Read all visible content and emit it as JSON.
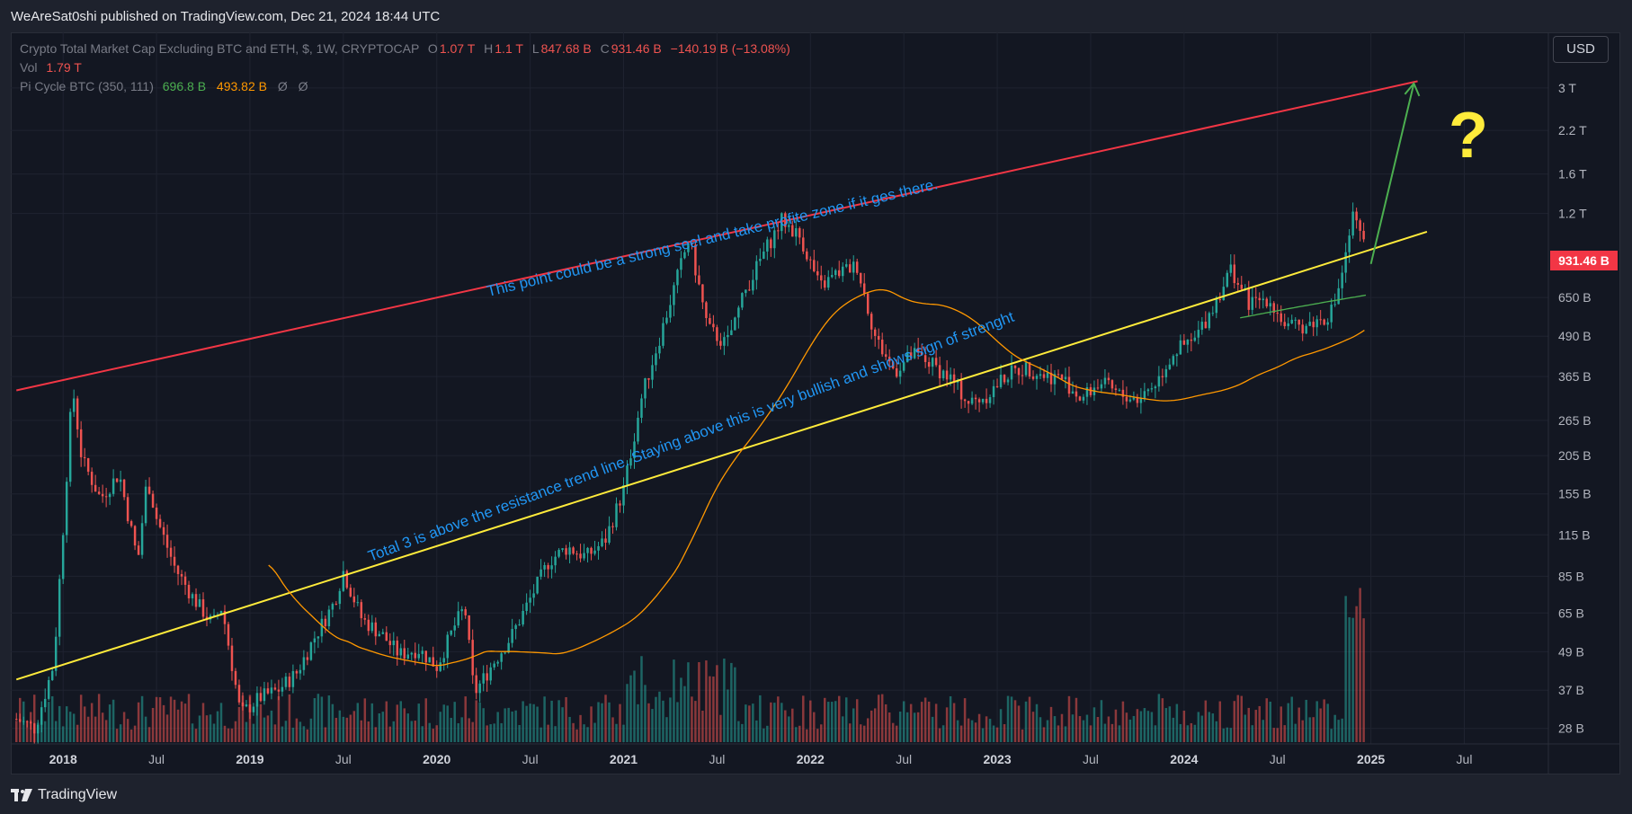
{
  "publisher": "WeAreSat0shi published on TradingView.com, Dec 21, 2024 18:44 UTC",
  "legend": {
    "symbol": "Crypto Total Market Cap Excluding BTC and ETH, $, 1W, CRYPTOCAP",
    "o_label": "O",
    "o_value": "1.07 T",
    "h_label": "H",
    "h_value": "1.1 T",
    "l_label": "L",
    "l_value": "847.68 B",
    "c_label": "C",
    "c_value": "931.46 B",
    "change": "−140.19 B (−13.08%)",
    "vol_label": "Vol",
    "vol_value": "1.79 T",
    "pi_label": "Pi Cycle BTC (350, 111)",
    "pi_value1": "696.8 B",
    "pi_value2": "493.82 B",
    "pi_na1": "Ø",
    "pi_na2": "Ø"
  },
  "currency_button": "USD",
  "last_price_label": "931.46 B",
  "brand": "TradingView",
  "chart_data": {
    "type": "candlestick",
    "timeframe": "1W",
    "y_scale": "log",
    "ylim_billions": [
      25,
      4500
    ],
    "xlim": [
      "2017-09",
      "2025-10"
    ],
    "y_ticks": [
      {
        "label": "3 T",
        "value": 3000
      },
      {
        "label": "2.2 T",
        "value": 2200
      },
      {
        "label": "1.6 T",
        "value": 1600
      },
      {
        "label": "1.2 T",
        "value": 1200
      },
      {
        "label": "650 B",
        "value": 650
      },
      {
        "label": "490 B",
        "value": 490
      },
      {
        "label": "365 B",
        "value": 365
      },
      {
        "label": "265 B",
        "value": 265
      },
      {
        "label": "205 B",
        "value": 205
      },
      {
        "label": "155 B",
        "value": 155
      },
      {
        "label": "115 B",
        "value": 115
      },
      {
        "label": "85 B",
        "value": 85
      },
      {
        "label": "65 B",
        "value": 65
      },
      {
        "label": "49 B",
        "value": 49
      },
      {
        "label": "37 B",
        "value": 37
      },
      {
        "label": "28 B",
        "value": 28
      }
    ],
    "x_ticks": [
      {
        "label": "2018",
        "date": 2018.0,
        "major": true
      },
      {
        "label": "Jul",
        "date": 2018.5,
        "major": false
      },
      {
        "label": "2019",
        "date": 2019.0,
        "major": true
      },
      {
        "label": "Jul",
        "date": 2019.5,
        "major": false
      },
      {
        "label": "2020",
        "date": 2020.0,
        "major": true
      },
      {
        "label": "Jul",
        "date": 2020.5,
        "major": false
      },
      {
        "label": "2021",
        "date": 2021.0,
        "major": true
      },
      {
        "label": "Jul",
        "date": 2021.5,
        "major": false
      },
      {
        "label": "2022",
        "date": 2022.0,
        "major": true
      },
      {
        "label": "Jul",
        "date": 2022.5,
        "major": false
      },
      {
        "label": "2023",
        "date": 2023.0,
        "major": true
      },
      {
        "label": "Jul",
        "date": 2023.5,
        "major": false
      },
      {
        "label": "2024",
        "date": 2024.0,
        "major": true
      },
      {
        "label": "Jul",
        "date": 2024.5,
        "major": false
      },
      {
        "label": "2025",
        "date": 2025.0,
        "major": true
      },
      {
        "label": "Jul",
        "date": 2025.5,
        "major": false
      }
    ],
    "price_path": [
      [
        2017.75,
        30
      ],
      [
        2017.85,
        28
      ],
      [
        2017.95,
        45
      ],
      [
        2018.0,
        120
      ],
      [
        2018.05,
        340
      ],
      [
        2018.1,
        200
      ],
      [
        2018.2,
        150
      ],
      [
        2018.3,
        180
      ],
      [
        2018.4,
        95
      ],
      [
        2018.45,
        175
      ],
      [
        2018.5,
        130
      ],
      [
        2018.6,
        90
      ],
      [
        2018.7,
        72
      ],
      [
        2018.8,
        60
      ],
      [
        2018.85,
        68
      ],
      [
        2018.95,
        31
      ],
      [
        2019.05,
        35
      ],
      [
        2019.15,
        37
      ],
      [
        2019.25,
        42
      ],
      [
        2019.35,
        55
      ],
      [
        2019.45,
        70
      ],
      [
        2019.5,
        88
      ],
      [
        2019.6,
        62
      ],
      [
        2019.7,
        56
      ],
      [
        2019.8,
        48
      ],
      [
        2019.9,
        50
      ],
      [
        2020.0,
        44
      ],
      [
        2020.1,
        60
      ],
      [
        2020.15,
        68
      ],
      [
        2020.2,
        36
      ],
      [
        2020.3,
        45
      ],
      [
        2020.4,
        55
      ],
      [
        2020.5,
        72
      ],
      [
        2020.6,
        95
      ],
      [
        2020.7,
        105
      ],
      [
        2020.8,
        98
      ],
      [
        2020.9,
        110
      ],
      [
        2021.0,
        160
      ],
      [
        2021.1,
        320
      ],
      [
        2021.2,
        500
      ],
      [
        2021.3,
        800
      ],
      [
        2021.35,
        1000
      ],
      [
        2021.45,
        520
      ],
      [
        2021.55,
        460
      ],
      [
        2021.65,
        680
      ],
      [
        2021.75,
        900
      ],
      [
        2021.85,
        1150
      ],
      [
        2021.95,
        1000
      ],
      [
        2022.05,
        700
      ],
      [
        2022.15,
        780
      ],
      [
        2022.25,
        820
      ],
      [
        2022.35,
        480
      ],
      [
        2022.45,
        380
      ],
      [
        2022.55,
        430
      ],
      [
        2022.65,
        400
      ],
      [
        2022.75,
        360
      ],
      [
        2022.85,
        300
      ],
      [
        2022.95,
        320
      ],
      [
        2023.05,
        370
      ],
      [
        2023.15,
        390
      ],
      [
        2023.25,
        370
      ],
      [
        2023.35,
        360
      ],
      [
        2023.45,
        310
      ],
      [
        2023.55,
        350
      ],
      [
        2023.65,
        320
      ],
      [
        2023.75,
        310
      ],
      [
        2023.85,
        350
      ],
      [
        2023.95,
        440
      ],
      [
        2024.05,
        470
      ],
      [
        2024.15,
        600
      ],
      [
        2024.25,
        800
      ],
      [
        2024.35,
        620
      ],
      [
        2024.45,
        650
      ],
      [
        2024.55,
        520
      ],
      [
        2024.65,
        530
      ],
      [
        2024.75,
        560
      ],
      [
        2024.8,
        600
      ],
      [
        2024.87,
        900
      ],
      [
        2024.9,
        1180
      ],
      [
        2024.97,
        931
      ]
    ],
    "volume_scale_max": 1.0,
    "annotations": [
      {
        "text": "This point could be a strong seel and take profite zone if it ges there.",
        "type": "text"
      },
      {
        "text": "Total 3 is above the resistance trend line. Staying above this is very bullish and shows sign of strenght",
        "type": "text"
      },
      {
        "text": "?",
        "type": "marker"
      }
    ],
    "trend_lines": [
      {
        "name": "resistance",
        "color": "#f23645",
        "from": [
          2017.75,
          330
        ],
        "to": [
          2025.25,
          3150
        ]
      },
      {
        "name": "support",
        "color": "#ffeb3b",
        "from": [
          2017.75,
          40
        ],
        "to": [
          2025.3,
          1050
        ]
      },
      {
        "name": "target",
        "color": "#4caf50",
        "from": [
          2025.0,
          830
        ],
        "to": [
          2025.23,
          3100
        ]
      }
    ]
  }
}
